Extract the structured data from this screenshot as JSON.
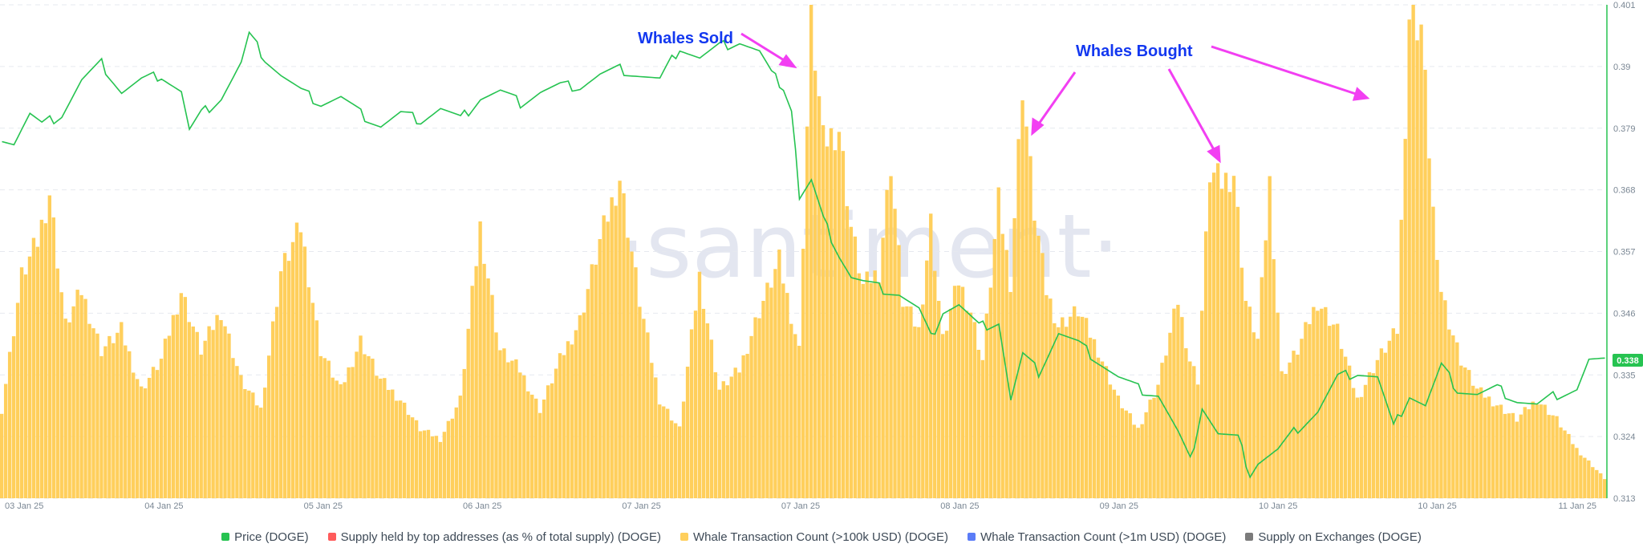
{
  "watermark": "·santiment·",
  "legend": [
    {
      "label": "Price (DOGE)",
      "color": "#26c351"
    },
    {
      "label": "Supply held by top addresses (as % of total supply) (DOGE)",
      "color": "#ff5b5b"
    },
    {
      "label": "Whale Transaction Count (>100k USD) (DOGE)",
      "color": "#ffcf5c"
    },
    {
      "label": "Whale Transaction Count (>1m USD) (DOGE)",
      "color": "#5b7cf7"
    },
    {
      "label": "Supply on Exchanges (DOGE)",
      "color": "#7b7b7b"
    }
  ],
  "annotations": [
    {
      "text": "Whales Sold"
    },
    {
      "text": "Whales Bought"
    }
  ],
  "price_badge": "0.338",
  "chart_data": {
    "type": "bar+line",
    "x_tick_labels": [
      "03 Jan 25",
      "04 Jan 25",
      "05 Jan 25",
      "06 Jan 25",
      "07 Jan 25",
      "07 Jan 25",
      "08 Jan 25",
      "09 Jan 25",
      "10 Jan 25",
      "10 Jan 25",
      "11 Jan 25"
    ],
    "y_right_ticks": [
      "0.401",
      "0.39",
      "0.379",
      "0.368",
      "0.357",
      "0.346",
      "0.335",
      "0.324",
      "0.313"
    ],
    "y_right_range": [
      0.313,
      0.401
    ],
    "bar_range": [
      0,
      1
    ],
    "series": [
      {
        "name": "Whale Transaction Count (>100k USD) (DOGE)",
        "type": "bar",
        "color": "#ffcf5c",
        "keypoints": [
          [
            0,
            0.18
          ],
          [
            5,
            0.45
          ],
          [
            9,
            0.52
          ],
          [
            12,
            0.62
          ],
          [
            16,
            0.35
          ],
          [
            20,
            0.42
          ],
          [
            25,
            0.3
          ],
          [
            30,
            0.34
          ],
          [
            35,
            0.22
          ],
          [
            40,
            0.28
          ],
          [
            45,
            0.42
          ],
          [
            50,
            0.3
          ],
          [
            55,
            0.38
          ],
          [
            60,
            0.24
          ],
          [
            65,
            0.18
          ],
          [
            70,
            0.46
          ],
          [
            75,
            0.55
          ],
          [
            80,
            0.3
          ],
          [
            85,
            0.22
          ],
          [
            90,
            0.32
          ],
          [
            95,
            0.24
          ],
          [
            100,
            0.2
          ],
          [
            105,
            0.14
          ],
          [
            110,
            0.12
          ],
          [
            115,
            0.2
          ],
          [
            120,
            0.55
          ],
          [
            125,
            0.3
          ],
          [
            130,
            0.26
          ],
          [
            135,
            0.18
          ],
          [
            140,
            0.28
          ],
          [
            145,
            0.36
          ],
          [
            150,
            0.52
          ],
          [
            155,
            0.65
          ],
          [
            160,
            0.4
          ],
          [
            165,
            0.2
          ],
          [
            170,
            0.14
          ],
          [
            175,
            0.45
          ],
          [
            180,
            0.22
          ],
          [
            185,
            0.26
          ],
          [
            190,
            0.38
          ],
          [
            195,
            0.48
          ],
          [
            200,
            0.3
          ],
          [
            203,
            0.98
          ],
          [
            206,
            0.72
          ],
          [
            210,
            0.75
          ],
          [
            213,
            0.55
          ],
          [
            216,
            0.43
          ],
          [
            220,
            0.46
          ],
          [
            223,
            0.68
          ],
          [
            226,
            0.4
          ],
          [
            230,
            0.34
          ],
          [
            233,
            0.56
          ],
          [
            236,
            0.32
          ],
          [
            240,
            0.44
          ],
          [
            243,
            0.38
          ],
          [
            246,
            0.28
          ],
          [
            250,
            0.6
          ],
          [
            253,
            0.44
          ],
          [
            256,
            0.84
          ],
          [
            259,
            0.58
          ],
          [
            262,
            0.42
          ],
          [
            265,
            0.35
          ],
          [
            270,
            0.38
          ],
          [
            275,
            0.3
          ],
          [
            280,
            0.2
          ],
          [
            285,
            0.14
          ],
          [
            290,
            0.23
          ],
          [
            295,
            0.4
          ],
          [
            298,
            0.28
          ],
          [
            300,
            0.24
          ],
          [
            303,
            0.66
          ],
          [
            306,
            0.64
          ],
          [
            309,
            0.66
          ],
          [
            312,
            0.4
          ],
          [
            315,
            0.32
          ],
          [
            318,
            0.64
          ],
          [
            321,
            0.25
          ],
          [
            325,
            0.3
          ],
          [
            330,
            0.4
          ],
          [
            335,
            0.34
          ],
          [
            340,
            0.2
          ],
          [
            345,
            0.28
          ],
          [
            350,
            0.34
          ],
          [
            353,
            0.98
          ],
          [
            356,
            0.96
          ],
          [
            360,
            0.46
          ],
          [
            363,
            0.36
          ],
          [
            366,
            0.28
          ],
          [
            370,
            0.22
          ],
          [
            375,
            0.19
          ],
          [
            380,
            0.16
          ],
          [
            385,
            0.2
          ],
          [
            390,
            0.16
          ],
          [
            395,
            0.1
          ],
          [
            402,
            0.04
          ]
        ]
      },
      {
        "name": "Price (DOGE)",
        "type": "line",
        "color": "#26c351",
        "keypoints": [
          [
            0,
            0.3775
          ],
          [
            3,
            0.3765
          ],
          [
            7,
            0.3815
          ],
          [
            10,
            0.3795
          ],
          [
            15,
            0.3815
          ],
          [
            20,
            0.3875
          ],
          [
            25,
            0.3905
          ],
          [
            30,
            0.3855
          ],
          [
            35,
            0.3875
          ],
          [
            40,
            0.3885
          ],
          [
            45,
            0.3855
          ],
          [
            47,
            0.3785
          ],
          [
            50,
            0.3815
          ],
          [
            55,
            0.3845
          ],
          [
            60,
            0.3905
          ],
          [
            62,
            0.3955
          ],
          [
            66,
            0.3915
          ],
          [
            70,
            0.3885
          ],
          [
            75,
            0.3855
          ],
          [
            80,
            0.3835
          ],
          [
            85,
            0.3845
          ],
          [
            90,
            0.3815
          ],
          [
            95,
            0.3795
          ],
          [
            100,
            0.3815
          ],
          [
            105,
            0.3805
          ],
          [
            110,
            0.3825
          ],
          [
            115,
            0.3805
          ],
          [
            120,
            0.3845
          ],
          [
            125,
            0.3855
          ],
          [
            130,
            0.3835
          ],
          [
            135,
            0.3855
          ],
          [
            140,
            0.3865
          ],
          [
            145,
            0.3865
          ],
          [
            150,
            0.3885
          ],
          [
            155,
            0.3895
          ],
          [
            160,
            0.3885
          ],
          [
            165,
            0.3875
          ],
          [
            170,
            0.3935
          ],
          [
            175,
            0.3915
          ],
          [
            180,
            0.3935
          ],
          [
            185,
            0.3945
          ],
          [
            190,
            0.3925
          ],
          [
            193,
            0.3885
          ],
          [
            196,
            0.3865
          ],
          [
            198,
            0.3825
          ],
          [
            199,
            0.3755
          ],
          [
            200,
            0.3665
          ],
          [
            203,
            0.3695
          ],
          [
            206,
            0.3625
          ],
          [
            210,
            0.3565
          ],
          [
            213,
            0.3525
          ],
          [
            216,
            0.3515
          ],
          [
            220,
            0.3505
          ],
          [
            225,
            0.3495
          ],
          [
            230,
            0.3465
          ],
          [
            233,
            0.3415
          ],
          [
            236,
            0.3465
          ],
          [
            240,
            0.3475
          ],
          [
            245,
            0.3435
          ],
          [
            250,
            0.3445
          ],
          [
            253,
            0.3305
          ],
          [
            256,
            0.3385
          ],
          [
            260,
            0.3355
          ],
          [
            265,
            0.3425
          ],
          [
            270,
            0.3405
          ],
          [
            275,
            0.3375
          ],
          [
            280,
            0.3345
          ],
          [
            285,
            0.3325
          ],
          [
            290,
            0.3315
          ],
          [
            295,
            0.3245
          ],
          [
            298,
            0.3195
          ],
          [
            301,
            0.3295
          ],
          [
            305,
            0.3245
          ],
          [
            310,
            0.3235
          ],
          [
            313,
            0.3175
          ],
          [
            315,
            0.3195
          ],
          [
            320,
            0.3215
          ],
          [
            325,
            0.3255
          ],
          [
            330,
            0.3285
          ],
          [
            335,
            0.3345
          ],
          [
            340,
            0.3355
          ],
          [
            345,
            0.3345
          ],
          [
            349,
            0.3255
          ],
          [
            353,
            0.3315
          ],
          [
            357,
            0.3295
          ],
          [
            361,
            0.3365
          ],
          [
            365,
            0.3325
          ],
          [
            370,
            0.3315
          ],
          [
            375,
            0.3325
          ],
          [
            380,
            0.3305
          ],
          [
            385,
            0.3295
          ],
          [
            390,
            0.3315
          ],
          [
            395,
            0.3325
          ],
          [
            398,
            0.3375
          ]
        ]
      }
    ]
  }
}
